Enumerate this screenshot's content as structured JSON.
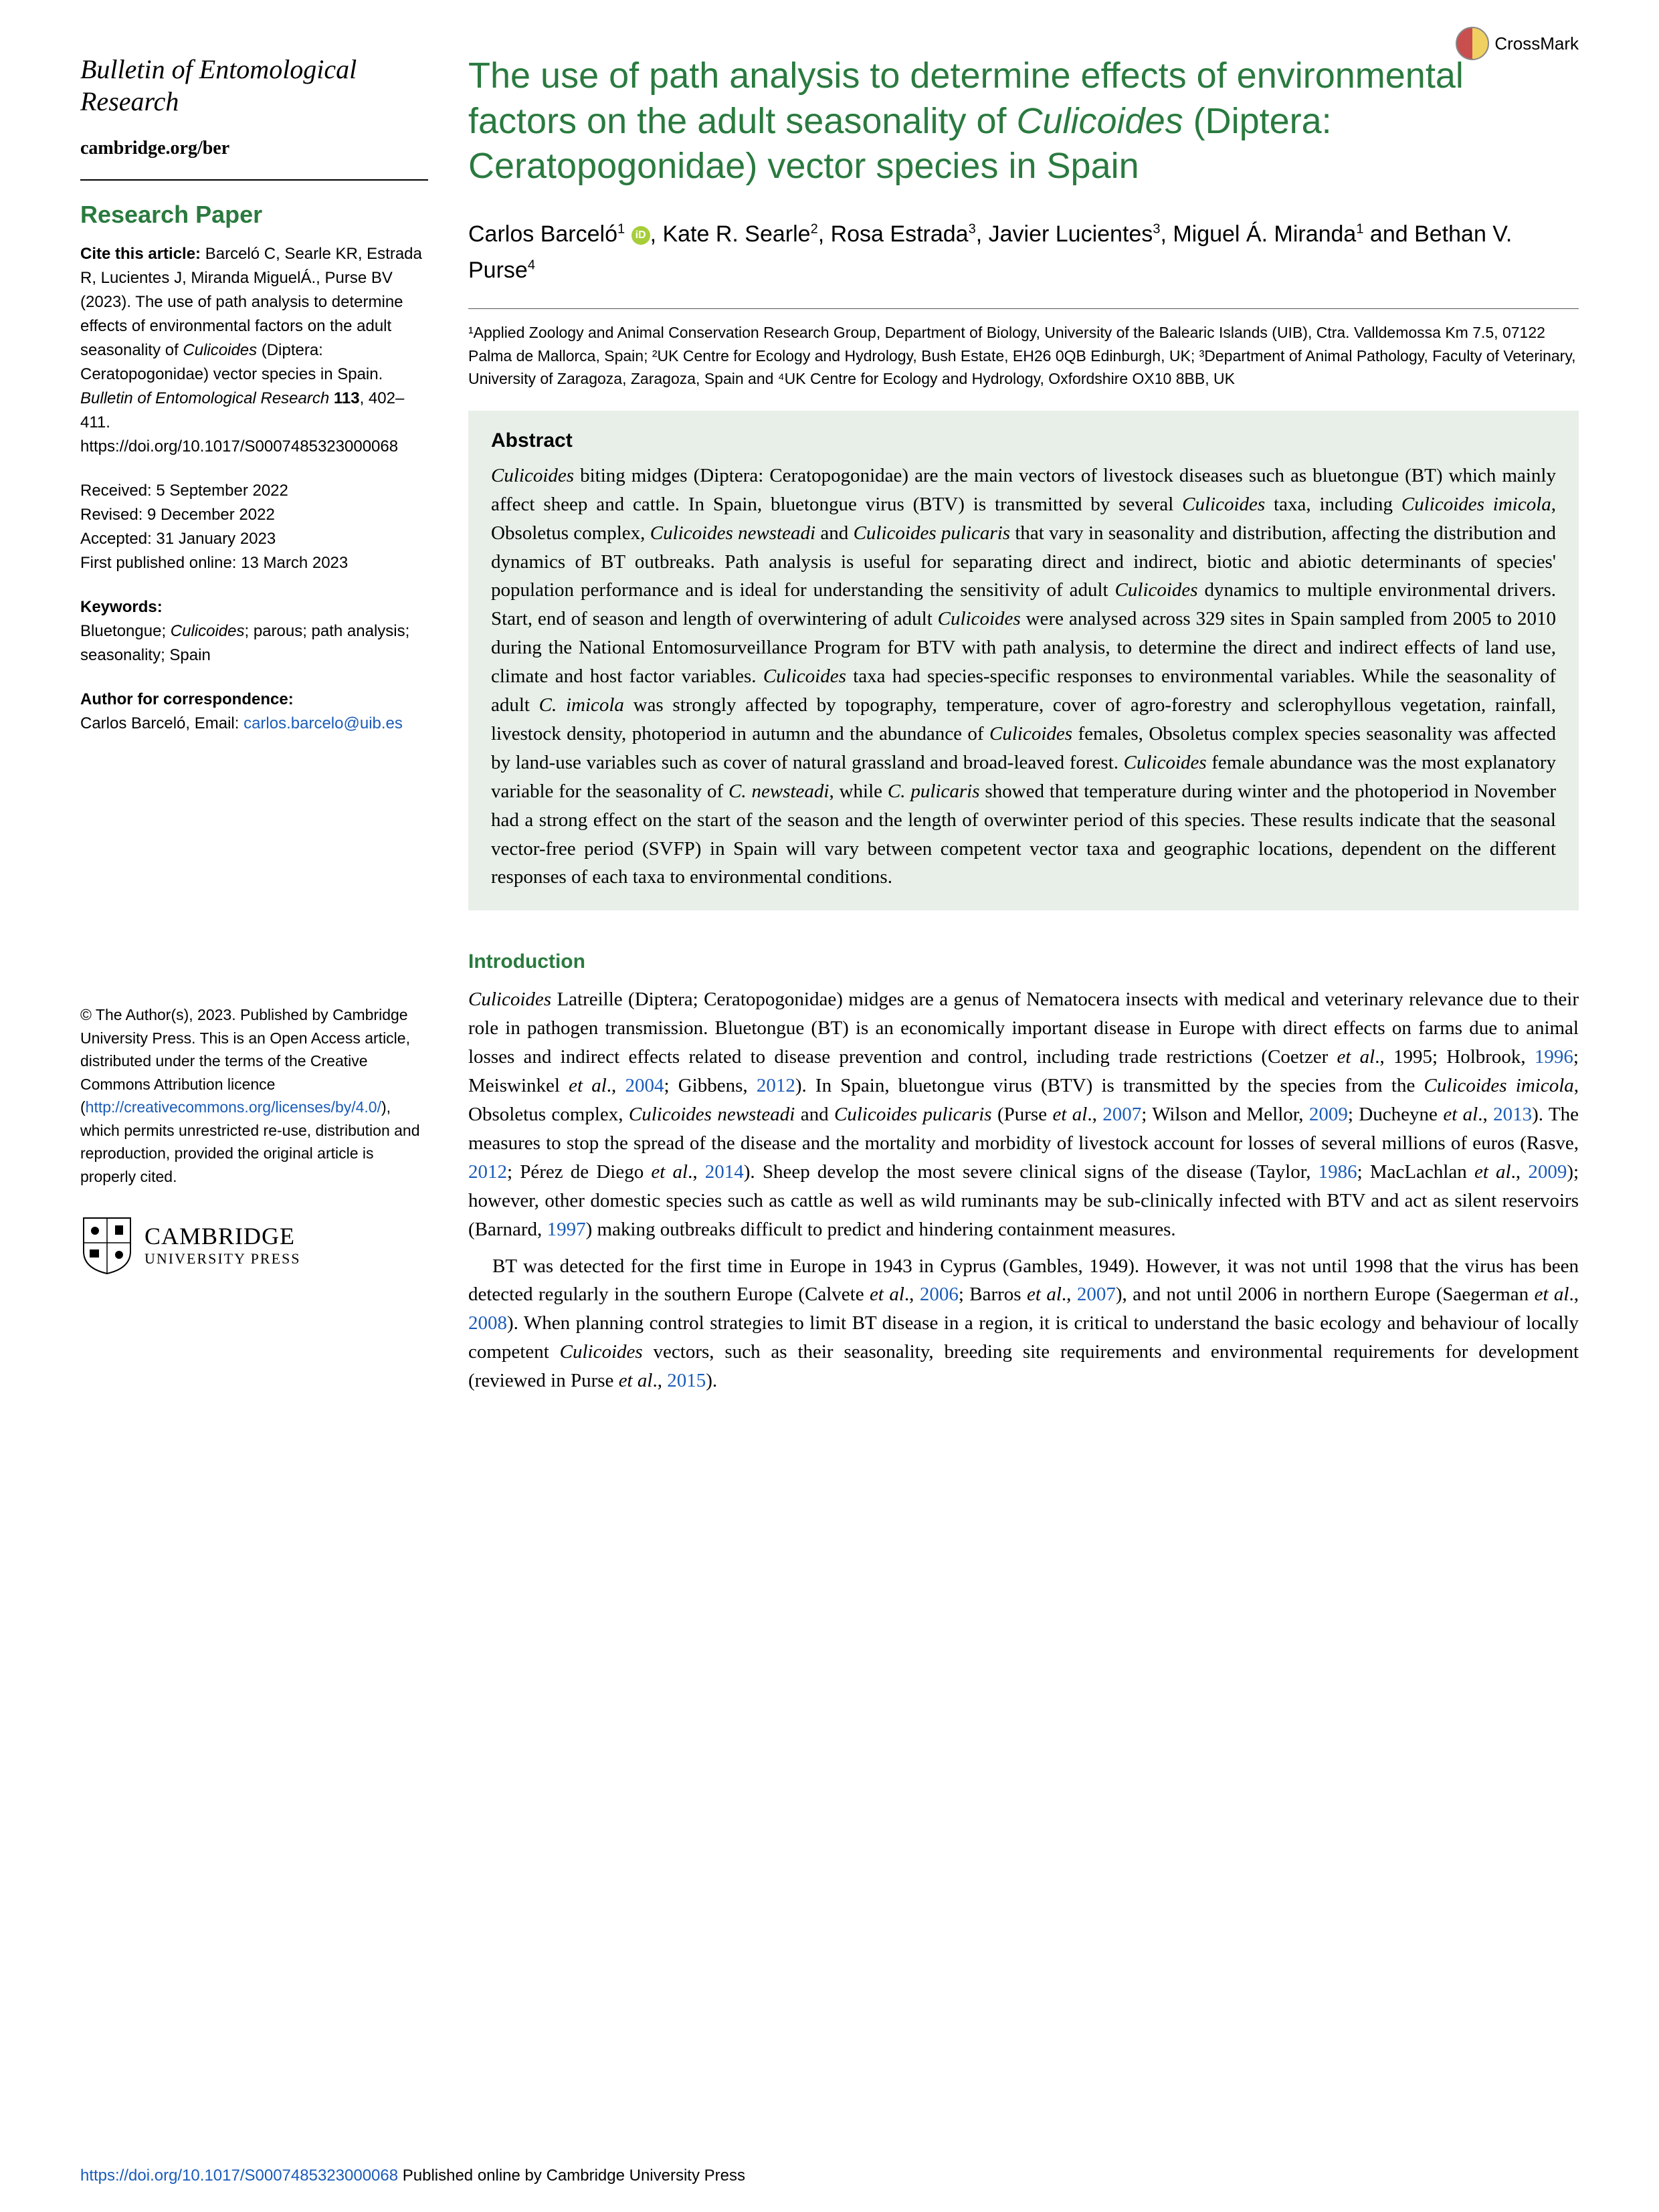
{
  "crossmark": {
    "label": "CrossMark"
  },
  "journal": {
    "name": "Bulletin of Entomological Research",
    "link": "cambridge.org/ber"
  },
  "section_label": "Research Paper",
  "citation": {
    "prefix": "Cite this article:",
    "text": "Barceló C, Searle KR, Estrada R, Lucientes J, Miranda MiguelÁ., Purse BV (2023). The use of path analysis to determine effects of environmental factors on the adult seasonality of ",
    "italic1": "Culicoides",
    "text2": " (Diptera: Ceratopogonidae) vector species in Spain. ",
    "italic2": "Bulletin of Entomological Research",
    "text3": " ",
    "bold": "113",
    "text4": ", 402–411. ",
    "doi": "https://doi.org/10.1017/S0007485323000068"
  },
  "dates": {
    "received": "Received: 5 September 2022",
    "revised": "Revised: 9 December 2022",
    "accepted": "Accepted: 31 January 2023",
    "published": "First published online: 13 March 2023"
  },
  "keywords": {
    "label": "Keywords:",
    "text": "Bluetongue; ",
    "italic": "Culicoides",
    "text2": "; parous; path analysis; seasonality; Spain"
  },
  "correspondence": {
    "label": "Author for correspondence:",
    "text": "Carlos Barceló, Email: ",
    "email": "carlos.barcelo@uib.es"
  },
  "copyright": {
    "text": "© The Author(s), 2023. Published by Cambridge University Press. This is an Open Access article, distributed under the terms of the Creative Commons Attribution licence (",
    "link": "http://creativecommons.org/licenses/by/4.0/",
    "text2": "), which permits unrestricted re-use, distribution and reproduction, provided the original article is properly cited."
  },
  "publisher": {
    "line1": "CAMBRIDGE",
    "line2": "UNIVERSITY PRESS"
  },
  "title": {
    "part1": "The use of path analysis to determine effects of environmental factors on the adult seasonality of ",
    "italic": "Culicoides",
    "part2": " (Diptera: Ceratopogonidae) vector species in Spain"
  },
  "authors_line": "Carlos Barceló¹ , Kate R. Searle², Rosa Estrada³, Javier Lucientes³, Miguel Á. Miranda¹ and Bethan V. Purse⁴",
  "affiliations": "¹Applied Zoology and Animal Conservation Research Group, Department of Biology, University of the Balearic Islands (UIB), Ctra. Valldemossa Km 7.5, 07122 Palma de Mallorca, Spain; ²UK Centre for Ecology and Hydrology, Bush Estate, EH26 0QB Edinburgh, UK; ³Department of Animal Pathology, Faculty of Veterinary, University of Zaragoza, Zaragoza, Spain and ⁴UK Centre for Ecology and Hydrology, Oxfordshire OX10 8BB, UK",
  "abstract": {
    "heading": "Abstract",
    "text": "<span class=\"italic\">Culicoides</span> biting midges (Diptera: Ceratopogonidae) are the main vectors of livestock diseases such as bluetongue (BT) which mainly affect sheep and cattle. In Spain, bluetongue virus (BTV) is transmitted by several <span class=\"italic\">Culicoides</span> taxa, including <span class=\"italic\">Culicoides imicola</span>, Obsoletus complex, <span class=\"italic\">Culicoides newsteadi</span> and <span class=\"italic\">Culicoides pulicaris</span> that vary in seasonality and distribution, affecting the distribution and dynamics of BT outbreaks. Path analysis is useful for separating direct and indirect, biotic and abiotic determinants of species' population performance and is ideal for understanding the sensitivity of adult <span class=\"italic\">Culicoides</span> dynamics to multiple environmental drivers. Start, end of season and length of overwintering of adult <span class=\"italic\">Culicoides</span> were analysed across 329 sites in Spain sampled from 2005 to 2010 during the National Entomosurveillance Program for BTV with path analysis, to determine the direct and indirect effects of land use, climate and host factor variables. <span class=\"italic\">Culicoides</span> taxa had species-specific responses to environmental variables. While the seasonality of adult <span class=\"italic\">C. imicola</span> was strongly affected by topography, temperature, cover of agro-forestry and sclerophyllous vegetation, rainfall, livestock density, photoperiod in autumn and the abundance of <span class=\"italic\">Culicoides</span> females, Obsoletus complex species seasonality was affected by land-use variables such as cover of natural grassland and broad-leaved forest. <span class=\"italic\">Culicoides</span> female abundance was the most explanatory variable for the seasonality of <span class=\"italic\">C. newsteadi</span>, while <span class=\"italic\">C. pulicaris</span> showed that temperature during winter and the photoperiod in November had a strong effect on the start of the season and the length of overwinter period of this species. These results indicate that the seasonal vector-free period (SVFP) in Spain will vary between competent vector taxa and geographic locations, dependent on the different responses of each taxa to environmental conditions."
  },
  "introduction": {
    "heading": "Introduction",
    "p1": "<span class=\"italic\">Culicoides</span> Latreille (Diptera; Ceratopogonidae) midges are a genus of Nematocera insects with medical and veterinary relevance due to their role in pathogen transmission. Bluetongue (BT) is an economically important disease in Europe with direct effects on farms due to animal losses and indirect effects related to disease prevention and control, including trade restrictions (Coetzer <span class=\"italic\">et al</span>., 1995; Holbrook, <span class=\"link\">1996</span>; Meiswinkel <span class=\"italic\">et al</span>., <span class=\"link\">2004</span>; Gibbens, <span class=\"link\">2012</span>). In Spain, bluetongue virus (BTV) is transmitted by the species from the <span class=\"italic\">Culicoides imicola</span>, Obsoletus complex, <span class=\"italic\">Culicoides newsteadi</span> and <span class=\"italic\">Culicoides pulicaris</span> (Purse <span class=\"italic\">et al</span>., <span class=\"link\">2007</span>; Wilson and Mellor, <span class=\"link\">2009</span>; Ducheyne <span class=\"italic\">et al</span>., <span class=\"link\">2013</span>). The measures to stop the spread of the disease and the mortality and morbidity of livestock account for losses of several millions of euros (Rasve, <span class=\"link\">2012</span>; Pérez de Diego <span class=\"italic\">et al</span>., <span class=\"link\">2014</span>). Sheep develop the most severe clinical signs of the disease (Taylor, <span class=\"link\">1986</span>; MacLachlan <span class=\"italic\">et al</span>., <span class=\"link\">2009</span>); however, other domestic species such as cattle as well as wild ruminants may be sub-clinically infected with BTV and act as silent reservoirs (Barnard, <span class=\"link\">1997</span>) making outbreaks difficult to predict and hindering containment measures.",
    "p2": "BT was detected for the first time in Europe in 1943 in Cyprus (Gambles, 1949). However, it was not until 1998 that the virus has been detected regularly in the southern Europe (Calvete <span class=\"italic\">et al</span>., <span class=\"link\">2006</span>; Barros <span class=\"italic\">et al</span>., <span class=\"link\">2007</span>), and not until 2006 in northern Europe (Saegerman <span class=\"italic\">et al</span>., <span class=\"link\">2008</span>). When planning control strategies to limit BT disease in a region, it is critical to understand the basic ecology and behaviour of locally competent <span class=\"italic\">Culicoides</span> vectors, such as their seasonality, breeding site requirements and environmental requirements for development (reviewed in Purse <span class=\"italic\">et al</span>., <span class=\"link\">2015</span>)."
  },
  "footer": {
    "doi": "https://doi.org/10.1017/S0007485323000068",
    "text": " Published online by Cambridge University Press"
  }
}
